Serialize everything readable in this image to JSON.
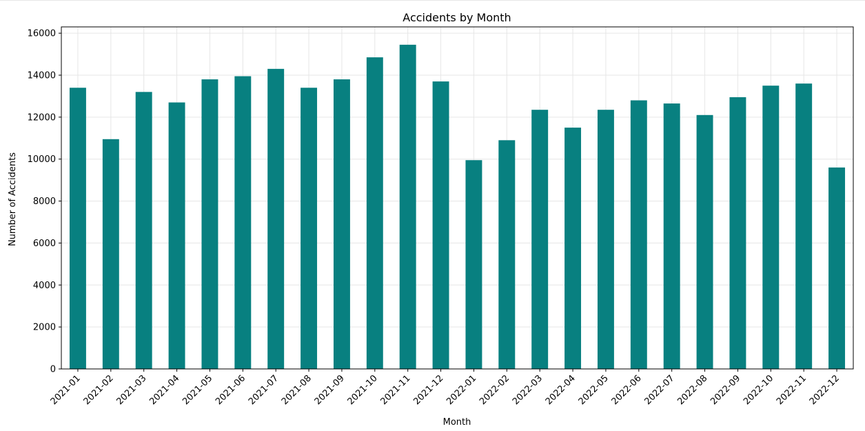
{
  "chart_data": {
    "type": "bar",
    "title": "Accidents by Month",
    "xlabel": "Month",
    "ylabel": "Number of Accidents",
    "categories": [
      "2021-01",
      "2021-02",
      "2021-03",
      "2021-04",
      "2021-05",
      "2021-06",
      "2021-07",
      "2021-08",
      "2021-09",
      "2021-10",
      "2021-11",
      "2021-12",
      "2022-01",
      "2022-02",
      "2022-03",
      "2022-04",
      "2022-05",
      "2022-06",
      "2022-07",
      "2022-08",
      "2022-09",
      "2022-10",
      "2022-11",
      "2022-12"
    ],
    "values": [
      13400,
      10950,
      13200,
      12700,
      13800,
      13950,
      14300,
      13400,
      13800,
      14850,
      15450,
      13700,
      9950,
      10900,
      12350,
      11500,
      12350,
      12800,
      12650,
      12100,
      12950,
      13500,
      13600,
      9600
    ],
    "yticks": [
      0,
      2000,
      4000,
      6000,
      8000,
      10000,
      12000,
      14000,
      16000
    ],
    "ylim": [
      0,
      16300
    ],
    "grid": true,
    "bar_color": "#088080",
    "grid_color": "#e6e6e6"
  }
}
